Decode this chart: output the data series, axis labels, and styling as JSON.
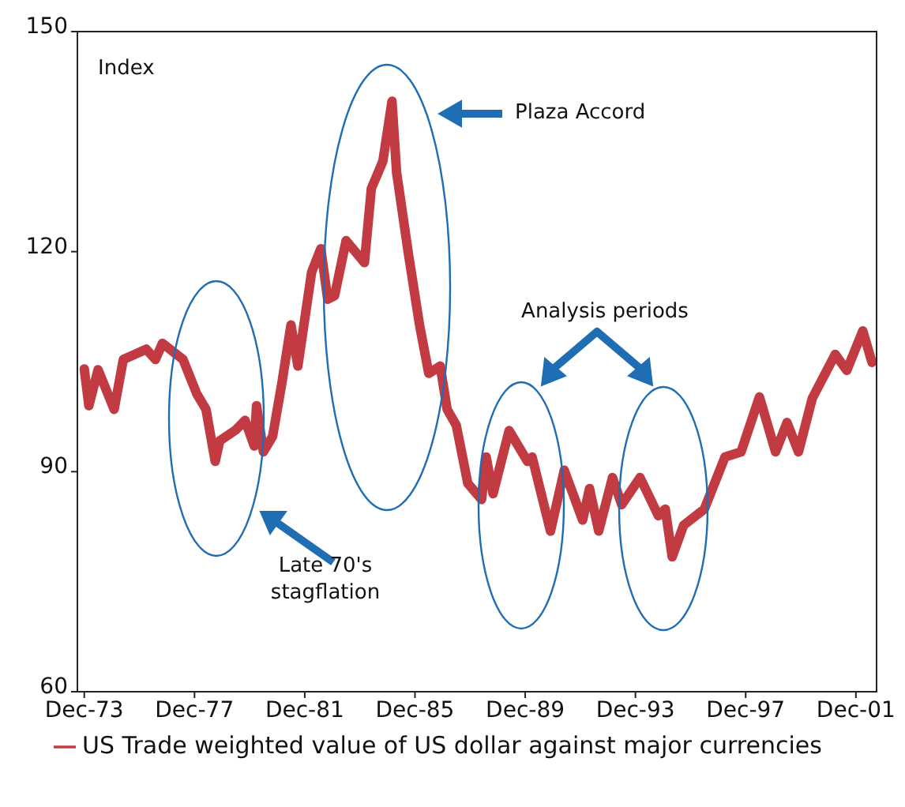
{
  "chart_data": {
    "type": "line",
    "ylabel": "Index",
    "annotations": [
      "Plaza Accord",
      "Analysis periods",
      "Late 70's stagflation"
    ],
    "x": [
      "1973-12",
      "1974-02",
      "1974-06",
      "1975-01",
      "1975-05",
      "1976-03",
      "1976-07",
      "1976-10",
      "1977-07",
      "1978-01",
      "1978-05",
      "1978-09",
      "1978-11",
      "1979-06",
      "1979-10",
      "1980-02",
      "1980-03",
      "1980-06",
      "1980-10",
      "1981-02",
      "1981-06",
      "1981-09",
      "1982-03",
      "1982-07",
      "1982-10",
      "1983-01",
      "1983-06",
      "1984-02",
      "1984-05",
      "1984-10",
      "1985-02",
      "1985-04",
      "1985-09",
      "1986-02",
      "1986-06",
      "1986-11",
      "1987-02",
      "1987-06",
      "1987-11",
      "1988-05",
      "1988-07",
      "1988-10",
      "1989-05",
      "1990-01",
      "1990-03",
      "1990-11",
      "1991-05",
      "1992-01",
      "1992-04",
      "1992-08",
      "1993-02",
      "1993-06",
      "1994-02",
      "1994-10",
      "1995-01",
      "1995-04",
      "1995-09",
      "1996-06",
      "1997-03",
      "1997-10",
      "1998-06",
      "1999-01",
      "1999-06",
      "1999-11",
      "2000-05",
      "2001-03",
      "2001-08",
      "2002-03",
      "2002-07"
    ],
    "series": [
      {
        "name": "US Trade weighted value of US dollar against major currencies",
        "color": "#c23b42",
        "values": [
          104,
          99,
          103.9,
          98.5,
          105.3,
          106.7,
          105.3,
          107.5,
          105.3,
          100.6,
          98.5,
          91.4,
          94.2,
          95.7,
          97,
          93.5,
          99,
          92.7,
          94.8,
          102,
          110,
          104.4,
          117.2,
          120.4,
          113.5,
          114,
          121.5,
          118.5,
          128.6,
          132.3,
          140.5,
          130.8,
          120,
          110,
          103.4,
          104.4,
          98.5,
          96.3,
          88.4,
          86.2,
          92,
          87,
          95.6,
          91.4,
          92,
          81.9,
          90.2,
          83.4,
          87.7,
          81.9,
          89.2,
          85.5,
          89.2,
          84,
          84.9,
          78.4,
          82.7,
          84.9,
          92,
          92.7,
          100.2,
          92.7,
          96.7,
          92.7,
          100,
          106,
          103.8,
          109.2,
          104.9
        ]
      }
    ],
    "xlim": [
      "1973-09",
      "2002-09"
    ],
    "xticks": [
      {
        "value": "1973-12",
        "label": "Dec-73"
      },
      {
        "value": "1977-12",
        "label": "Dec-77"
      },
      {
        "value": "1981-12",
        "label": "Dec-81"
      },
      {
        "value": "1985-12",
        "label": "Dec-85"
      },
      {
        "value": "1989-12",
        "label": "Dec-89"
      },
      {
        "value": "1993-12",
        "label": "Dec-93"
      },
      {
        "value": "1997-12",
        "label": "Dec-97"
      },
      {
        "value": "2001-12",
        "label": "Dec-01"
      }
    ],
    "ylim": [
      60,
      150
    ],
    "yticks": [
      60,
      90,
      120,
      150
    ],
    "grid": false,
    "legend": "bottom",
    "marker": "none",
    "line_style": "solid"
  }
}
